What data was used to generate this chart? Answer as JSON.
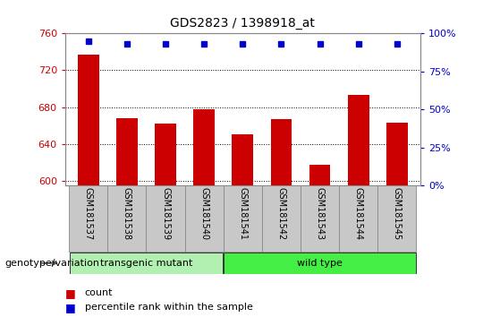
{
  "title": "GDS2823 / 1398918_at",
  "samples": [
    "GSM181537",
    "GSM181538",
    "GSM181539",
    "GSM181540",
    "GSM181541",
    "GSM181542",
    "GSM181543",
    "GSM181544",
    "GSM181545"
  ],
  "counts": [
    737,
    668,
    662,
    678,
    650,
    667,
    617,
    693,
    663
  ],
  "percentile_ranks": [
    95,
    93,
    93,
    93,
    93,
    93,
    93,
    93,
    93
  ],
  "ylim_left": [
    595,
    760
  ],
  "ylim_right": [
    0,
    100
  ],
  "yticks_left": [
    600,
    640,
    680,
    720,
    760
  ],
  "yticks_right": [
    0,
    25,
    50,
    75,
    100
  ],
  "bar_color": "#cc0000",
  "dot_color": "#0000cc",
  "transgenic_color": "#b2f0b2",
  "wildtype_color": "#44ee44",
  "group_label": "genotype/variation",
  "legend_count_label": "count",
  "legend_percentile_label": "percentile rank within the sample",
  "plot_bg": "#ffffff",
  "title_color": "#000000",
  "left_axis_color": "#cc0000",
  "right_axis_color": "#0000cc",
  "tick_label_bg": "#c8c8c8",
  "transgenic_samples": 4,
  "wildtype_samples": 5
}
